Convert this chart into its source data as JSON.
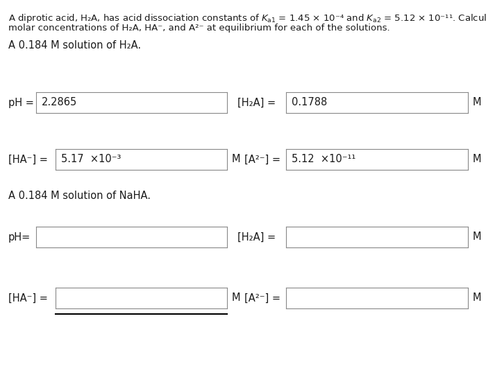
{
  "bg_color": "#ffffff",
  "text_color": "#1a1a1a",
  "box_edge_color": "#888888",
  "box_fill_color": "#ffffff",
  "font_size_title": 9.5,
  "font_size_label": 10.5,
  "font_size_value": 10.5,
  "ph_value1": "2.2865",
  "h2a_value1": "0.1788",
  "ha_value1": "5.17  ×10⁻³",
  "a2_value1": "5.12  ×10⁻¹¹"
}
